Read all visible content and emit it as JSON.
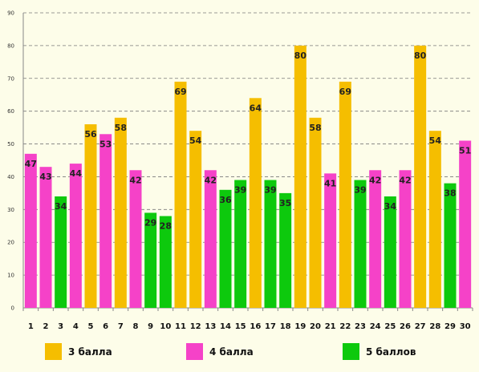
{
  "chart_data": {
    "type": "bar",
    "categories": [
      "1",
      "2",
      "3",
      "4",
      "5",
      "6",
      "7",
      "8",
      "9",
      "10",
      "11",
      "12",
      "13",
      "14",
      "15",
      "16",
      "17",
      "18",
      "19",
      "20",
      "21",
      "22",
      "23",
      "24",
      "25",
      "26",
      "27",
      "28",
      "29",
      "30"
    ],
    "values": [
      47,
      43,
      34,
      44,
      56,
      53,
      58,
      42,
      29,
      28,
      69,
      54,
      42,
      36,
      39,
      64,
      39,
      35,
      80,
      58,
      41,
      69,
      39,
      42,
      34,
      42,
      80,
      54,
      38,
      51
    ],
    "groups": [
      "4 балла",
      "4 балла",
      "5 баллов",
      "4 балла",
      "3 балла",
      "4 балла",
      "3 балла",
      "4 балла",
      "5 баллов",
      "5 баллов",
      "3 балла",
      "3 балла",
      "4 балла",
      "5 баллов",
      "5 баллов",
      "3 балла",
      "5 баллов",
      "5 баллов",
      "3 балла",
      "3 балла",
      "4 балла",
      "3 балла",
      "5 баллов",
      "4 балла",
      "5 баллов",
      "4 балла",
      "3 балла",
      "3 балла",
      "5 баллов",
      "4 балла"
    ],
    "legend": [
      {
        "name": "3 балла",
        "color": "#f5be00"
      },
      {
        "name": "4 балла",
        "color": "#f542c8"
      },
      {
        "name": "5 баллов",
        "color": "#0dc90d"
      }
    ],
    "ylim": [
      0,
      90
    ],
    "yticks": [
      0,
      10,
      20,
      30,
      40,
      50,
      60,
      70,
      80,
      90
    ],
    "grid": true,
    "legend_position": "bottom",
    "title": "",
    "xlabel": "",
    "ylabel": ""
  }
}
